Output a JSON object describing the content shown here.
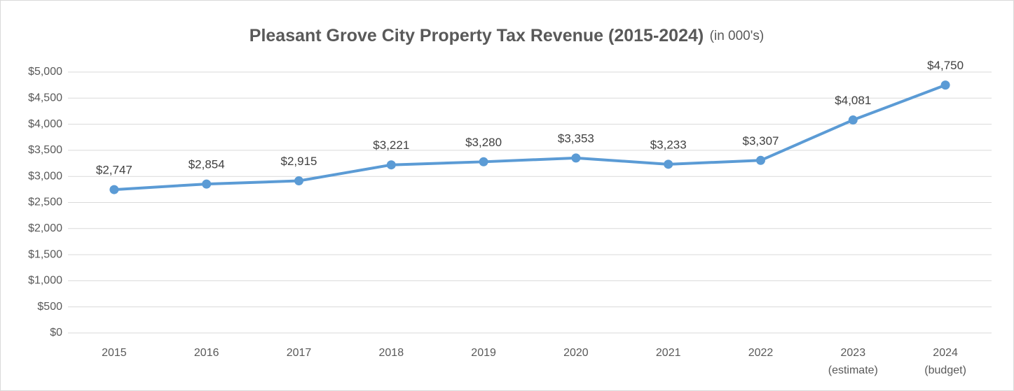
{
  "chart_data": {
    "type": "line",
    "title": "Pleasant Grove City Property Tax Revenue (2015-2024)",
    "subtitle": "(in 000's)",
    "categories": [
      "2015",
      "2016",
      "2017",
      "2018",
      "2019",
      "2020",
      "2021",
      "2022",
      "2023 (estimate)",
      "2024 (budget)"
    ],
    "series": [
      {
        "name": "Property Tax Revenue",
        "color": "#5b9bd5",
        "values": [
          2747,
          2854,
          2915,
          3221,
          3280,
          3353,
          3233,
          3307,
          4081,
          4750
        ],
        "value_labels": [
          "$2,747",
          "$2,854",
          "$2,915",
          "$3,221",
          "$3,280",
          "$3,353",
          "$3,233",
          "$3,307",
          "$4,081",
          "$4,750"
        ]
      }
    ],
    "ylim": [
      0,
      5000
    ],
    "yticks": [
      {
        "value": 0,
        "label": "$0"
      },
      {
        "value": 500,
        "label": "$500"
      },
      {
        "value": 1000,
        "label": "$1,000"
      },
      {
        "value": 1500,
        "label": "$1,500"
      },
      {
        "value": 2000,
        "label": "$2,000"
      },
      {
        "value": 2500,
        "label": "$2,500"
      },
      {
        "value": 3000,
        "label": "$3,000"
      },
      {
        "value": 3500,
        "label": "$3,500"
      },
      {
        "value": 4000,
        "label": "$4,000"
      },
      {
        "value": 4500,
        "label": "$4,500"
      },
      {
        "value": 5000,
        "label": "$5,000"
      }
    ],
    "grid": true
  }
}
